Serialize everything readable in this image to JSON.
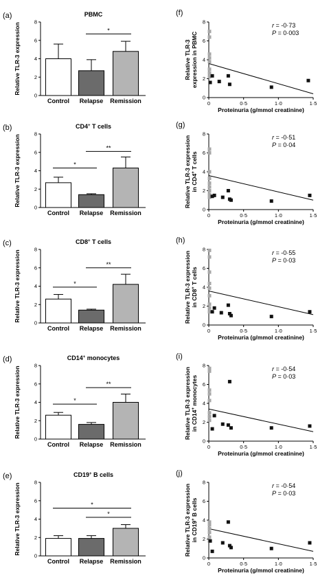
{
  "bar_panels": [
    {
      "letter": "(a)",
      "title": "PBMC",
      "title_sup": "",
      "title_rest": "",
      "ylabel": "Relative TLR-3 expression",
      "yticks": [
        "0",
        "2",
        "4",
        "6",
        "8"
      ]
    },
    {
      "letter": "(b)",
      "title": "CD4",
      "title_sup": "+",
      "title_rest": " T cells",
      "ylabel": "Relative TLR-3 expression",
      "yticks": [
        "0",
        "2",
        "4",
        "6",
        "8"
      ]
    },
    {
      "letter": "(c)",
      "title": "CD8",
      "title_sup": "+",
      "title_rest": " T cells",
      "ylabel": "Relative TLR-3 expression",
      "yticks": [
        "0",
        "2",
        "4",
        "6",
        "8"
      ]
    },
    {
      "letter": "(d)",
      "title": "CD14",
      "title_sup": "+",
      "title_rest": " monocytes",
      "ylabel": "Relative TLR-3 expression",
      "yticks": [
        "0",
        "2",
        "4",
        "6",
        "8"
      ]
    },
    {
      "letter": "(e)",
      "title": "CD19",
      "title_sup": "+",
      "title_rest": " B cells",
      "ylabel": "Relative TLR-3 expression",
      "yticks": [
        "0",
        "2",
        "4",
        "6",
        "8"
      ]
    }
  ],
  "scatter_panels": [
    {
      "letter": "(f)",
      "ylabel1": "Relative TLR-3",
      "ylabel2": "expression in PBMC",
      "ylabel2_sup": "",
      "ylabel2_rest": "",
      "r_label": "r",
      "r_value": " = -0·73",
      "p_label": "P",
      "p_value": " = 0·003",
      "xlabel": "Proteinuria (g/mmol creatinine)",
      "yticks": [
        "0",
        "2",
        "4",
        "6",
        "8"
      ],
      "xticks": [
        "0",
        "0·5",
        "1·0",
        "1·5"
      ]
    },
    {
      "letter": "(g)",
      "ylabel1": "Relative TLR-3 expression",
      "ylabel2": "in CD4",
      "ylabel2_sup": "+",
      "ylabel2_rest": " T cells",
      "r_label": "r",
      "r_value": " = -0·51",
      "p_label": "P",
      "p_value": " = 0·04",
      "xlabel": "Proteinuria (g/mmol creatinine)",
      "yticks": [
        "0",
        "2",
        "4",
        "6",
        "8"
      ],
      "xticks": [
        "0",
        "0·5",
        "1·0",
        "1·5"
      ]
    },
    {
      "letter": "(h)",
      "ylabel1": "Relative TLR-3 expression",
      "ylabel2": "in CD8",
      "ylabel2_sup": "+",
      "ylabel2_rest": " T cells",
      "r_label": "r",
      "r_value": " = -0·55",
      "p_label": "P",
      "p_value": " = 0·03",
      "xlabel": "Proteinuria (g/mmol creatinine)",
      "yticks": [
        "0",
        "2",
        "4",
        "6",
        "8"
      ],
      "xticks": [
        "0",
        "0·5",
        "1·0",
        "1·5"
      ]
    },
    {
      "letter": "(i)",
      "ylabel1": "Relative TLR-3 expression",
      "ylabel2": "in CD14",
      "ylabel2_sup": "+",
      "ylabel2_rest": " monocytes",
      "r_label": "r",
      "r_value": " = -0·54",
      "p_label": "P",
      "p_value": " = 0·03",
      "xlabel": "Proteinuria (g/mmol creatinine)",
      "yticks": [
        "0",
        "2",
        "4",
        "6",
        "8"
      ],
      "xticks": [
        "0",
        "0·5",
        "1·0",
        "1·5"
      ]
    },
    {
      "letter": "(j)",
      "ylabel1": "Relative TLR-3 expression",
      "ylabel2": "in CD19",
      "ylabel2_sup": "+",
      "ylabel2_rest": " B cells",
      "r_label": "r",
      "r_value": " = -0·54",
      "p_label": "P",
      "p_value": " = 0·03",
      "xlabel": "Proteinuria (g/mmol creatinine)",
      "yticks": [
        "0",
        "2",
        "4",
        "6",
        "8"
      ],
      "xticks": [
        "0",
        "0·5",
        "1·0",
        "1·5"
      ]
    }
  ],
  "colors": {
    "control": "#ffffff",
    "relapse": "#6b6b6b",
    "remission": "#b4b4b4",
    "gray_point": "#a8a8a8",
    "black_point": "#111111"
  },
  "chart_data": [
    {
      "type": "bar",
      "title": "PBMC",
      "ylabel": "Relative TLR-3 expression",
      "ylim": [
        0,
        8
      ],
      "categories": [
        "Control",
        "Relapse",
        "Remission"
      ],
      "values": [
        4.0,
        2.7,
        4.8
      ],
      "errors": [
        1.6,
        1.2,
        1.1
      ],
      "significance": [
        {
          "from": 1,
          "to": 2,
          "label": "*",
          "y": 6.7
        }
      ]
    },
    {
      "type": "bar",
      "title": "CD4+ T cells",
      "ylabel": "Relative TLR-3 expression",
      "ylim": [
        0,
        8
      ],
      "categories": [
        "Control",
        "Relapse",
        "Remission"
      ],
      "values": [
        2.7,
        1.4,
        4.3
      ],
      "errors": [
        0.6,
        0.1,
        1.2
      ],
      "significance": [
        {
          "from": 0,
          "to": 1,
          "label": "*",
          "y": 4.3
        },
        {
          "from": 1,
          "to": 2,
          "label": "**",
          "y": 6.1
        }
      ]
    },
    {
      "type": "bar",
      "title": "CD8+ T cells",
      "ylabel": "Relative TLR-3 expression",
      "ylim": [
        0,
        8
      ],
      "categories": [
        "Control",
        "Relapse",
        "Remission"
      ],
      "values": [
        2.6,
        1.4,
        4.2
      ],
      "errors": [
        0.5,
        0.1,
        1.1
      ],
      "significance": [
        {
          "from": 0,
          "to": 1,
          "label": "*",
          "y": 3.9
        },
        {
          "from": 1,
          "to": 2,
          "label": "**",
          "y": 6.0
        }
      ]
    },
    {
      "type": "bar",
      "title": "CD14+ monocytes",
      "ylabel": "Relative TLR-3 expression",
      "ylim": [
        0,
        8
      ],
      "categories": [
        "Control",
        "Relapse",
        "Remission"
      ],
      "values": [
        2.6,
        1.6,
        4.0
      ],
      "errors": [
        0.3,
        0.2,
        0.9
      ],
      "significance": [
        {
          "from": 0,
          "to": 1,
          "label": "*",
          "y": 3.8
        },
        {
          "from": 1,
          "to": 2,
          "label": "**",
          "y": 5.6
        }
      ]
    },
    {
      "type": "bar",
      "title": "CD19+ B cells",
      "ylabel": "Relative TLR-3 expression",
      "ylim": [
        0,
        8
      ],
      "categories": [
        "Control",
        "Relapse",
        "Remission"
      ],
      "values": [
        1.9,
        1.9,
        3.0
      ],
      "errors": [
        0.3,
        0.3,
        0.4
      ],
      "significance": [
        {
          "from": 0,
          "to": 2,
          "label": "*",
          "y": 5.2
        },
        {
          "from": 1,
          "to": 2,
          "label": "*",
          "y": 4.2
        }
      ]
    },
    {
      "type": "scatter",
      "xlabel": "Proteinuria (g/mmol creatinine)",
      "ylabel": "Relative TLR-3 expression in PBMC",
      "xlim": [
        0,
        1.5
      ],
      "ylim": [
        0,
        8
      ],
      "r": -0.73,
      "p": 0.003,
      "series": [
        {
          "color": "gray",
          "x": [
            0,
            0,
            0,
            0,
            0,
            0,
            0,
            0
          ],
          "y": [
            7.0,
            6.4,
            4.6,
            4.2,
            3.8,
            3.0,
            2.6,
            2.2
          ]
        },
        {
          "color": "black",
          "x": [
            0.02,
            0.05,
            0.15,
            0.28,
            0.3,
            0.9,
            1.43
          ],
          "y": [
            1.6,
            2.3,
            1.7,
            2.3,
            1.4,
            1.1,
            1.8
          ]
        }
      ],
      "fit_line": {
        "x": [
          0,
          1.5
        ],
        "y": [
          3.6,
          0.4
        ]
      }
    },
    {
      "type": "scatter",
      "xlabel": "Proteinuria (g/mmol creatinine)",
      "ylabel": "Relative TLR-3 expression in CD4+ T cells",
      "xlim": [
        0,
        1.5
      ],
      "ylim": [
        0,
        8
      ],
      "r": -0.51,
      "p": 0.04,
      "series": [
        {
          "color": "gray",
          "x": [
            0,
            0,
            0,
            0,
            0,
            0,
            0,
            0,
            0
          ],
          "y": [
            6.4,
            6.0,
            4.0,
            3.3,
            2.8,
            2.4,
            2.0,
            1.6,
            1.3
          ]
        },
        {
          "color": "black",
          "x": [
            0.05,
            0.08,
            0.2,
            0.28,
            0.3,
            0.32,
            0.9,
            1.45
          ],
          "y": [
            1.4,
            1.5,
            1.3,
            2.0,
            1.1,
            1.0,
            0.9,
            1.5
          ]
        }
      ],
      "fit_line": {
        "x": [
          0,
          1.5
        ],
        "y": [
          3.6,
          1.0
        ]
      }
    },
    {
      "type": "scatter",
      "xlabel": "Proteinuria (g/mmol creatinine)",
      "ylabel": "Relative TLR-3 expression in CD8+ T cells",
      "xlim": [
        0,
        1.5
      ],
      "ylim": [
        0,
        8
      ],
      "r": -0.55,
      "p": 0.03,
      "series": [
        {
          "color": "gray",
          "x": [
            0,
            0,
            0,
            0,
            0,
            0,
            0,
            0,
            0
          ],
          "y": [
            7.9,
            7.2,
            5.6,
            4.4,
            3.9,
            3.1,
            2.2,
            1.8,
            1.4
          ]
        },
        {
          "color": "black",
          "x": [
            0.05,
            0.08,
            0.18,
            0.28,
            0.3,
            0.32,
            0.9,
            1.45
          ],
          "y": [
            1.4,
            1.8,
            1.3,
            2.1,
            1.2,
            1.0,
            0.9,
            1.4
          ]
        }
      ],
      "fit_line": {
        "x": [
          0,
          1.5
        ],
        "y": [
          3.6,
          1.1
        ]
      }
    },
    {
      "type": "scatter",
      "xlabel": "Proteinuria (g/mmol creatinine)",
      "ylabel": "Relative TLR-3 expression in CD14+ monocytes",
      "xlim": [
        0,
        1.5
      ],
      "ylim": [
        0,
        8
      ],
      "r": -0.54,
      "p": 0.03,
      "series": [
        {
          "color": "gray",
          "x": [
            0,
            0,
            0,
            0,
            0,
            0,
            0,
            0
          ],
          "y": [
            7.7,
            7.4,
            5.4,
            5.0,
            4.3,
            3.0,
            2.6,
            2.2
          ]
        },
        {
          "color": "black",
          "x": [
            0.05,
            0.08,
            0.2,
            0.28,
            0.3,
            0.32,
            0.9,
            1.45
          ],
          "y": [
            1.3,
            2.7,
            1.8,
            1.7,
            6.3,
            1.4,
            1.4,
            1.6
          ]
        }
      ],
      "fit_line": {
        "x": [
          0,
          1.5
        ],
        "y": [
          3.4,
          1.0
        ]
      }
    },
    {
      "type": "scatter",
      "xlabel": "Proteinuria (g/mmol creatinine)",
      "ylabel": "Relative TLR-3 expression in CD19+ B cells",
      "xlim": [
        0,
        1.5
      ],
      "ylim": [
        0,
        8
      ],
      "r": -0.54,
      "p": 0.03,
      "series": [
        {
          "color": "gray",
          "x": [
            0,
            0,
            0,
            0,
            0,
            0
          ],
          "y": [
            3.8,
            3.5,
            3.1,
            2.7,
            2.2,
            1.8
          ]
        },
        {
          "color": "black",
          "x": [
            0.02,
            0.05,
            0.2,
            0.28,
            0.3,
            0.32,
            0.9,
            1.45
          ],
          "y": [
            1.8,
            0.7,
            1.6,
            3.8,
            1.3,
            1.1,
            1.0,
            1.6
          ]
        }
      ],
      "fit_line": {
        "x": [
          0,
          1.5
        ],
        "y": [
          3.1,
          0.7
        ]
      }
    }
  ]
}
